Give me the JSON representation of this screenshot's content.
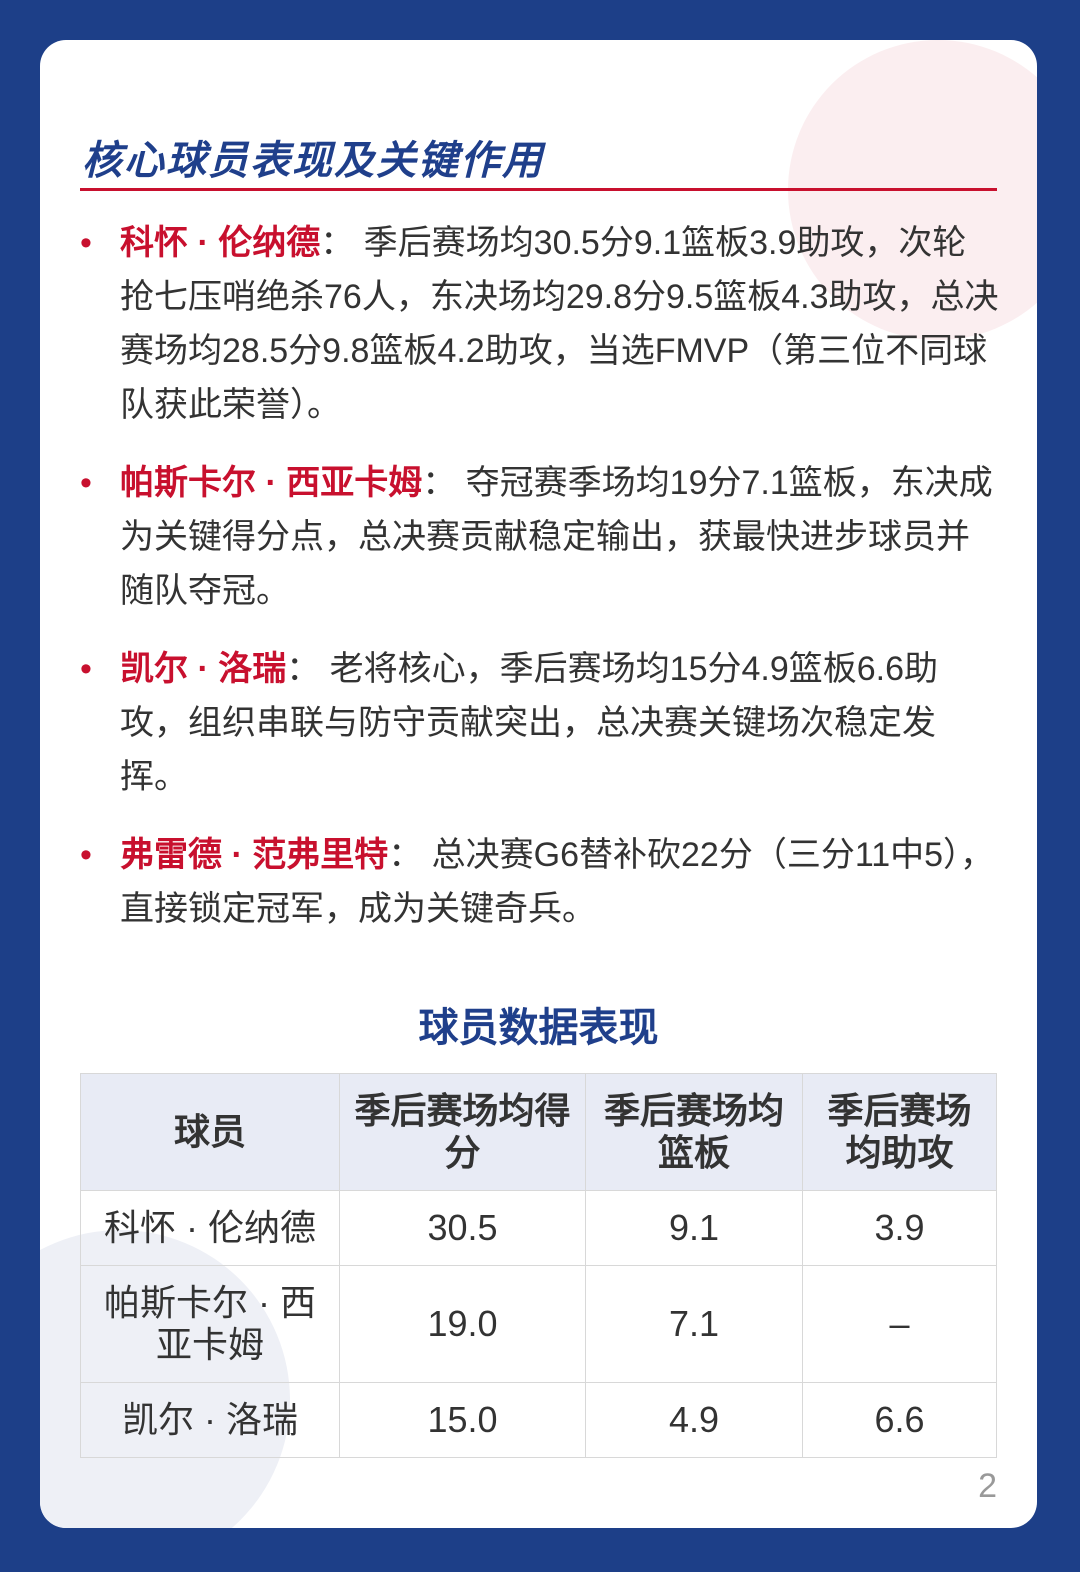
{
  "section_title": "核心球员表现及关键作用",
  "players": [
    {
      "name": "科怀 · 伦纳德",
      "sep": "：",
      "text": "季后赛场均30.5分9.1篮板3.9助攻，次轮抢七压哨绝杀76人，东决场均29.8分9.5篮板4.3助攻，总决赛场均28.5分9.8篮板4.2助攻，当选FMVP（第三位不同球队获此荣誉）。"
    },
    {
      "name": "帕斯卡尔 · 西亚卡姆",
      "sep": "：",
      "text": "夺冠赛季场均19分7.1篮板，东决成为关键得分点，总决赛贡献稳定输出，获最快进步球员并随队夺冠。"
    },
    {
      "name": "凯尔 · 洛瑞",
      "sep": "：",
      "text": "老将核心，季后赛场均15分4.9篮板6.6助攻，组织串联与防守贡献突出，总决赛关键场次稳定发挥。"
    },
    {
      "name": "弗雷德 · 范弗里特",
      "sep": "：",
      "text": "总决赛G6替补砍22分（三分11中5），直接锁定冠军，成为关键奇兵。"
    }
  ],
  "table": {
    "title": "球员数据表现",
    "headers": [
      "球员",
      "季后赛场均得分",
      "季后赛场均篮板",
      "季后赛场均助攻"
    ],
    "rows": [
      [
        "科怀 · 伦纳德",
        "30.5",
        "9.1",
        "3.9"
      ],
      [
        "帕斯卡尔 · 西亚卡姆",
        "19.0",
        "7.1",
        "–"
      ],
      [
        "凯尔 · 洛瑞",
        "15.0",
        "4.9",
        "6.6"
      ]
    ]
  },
  "page_number": "2",
  "colors": {
    "frame": "#1d3f88",
    "accent_red": "#c8102e",
    "title_blue": "#1f3f8b",
    "header_bg": "#e8ebf5"
  }
}
